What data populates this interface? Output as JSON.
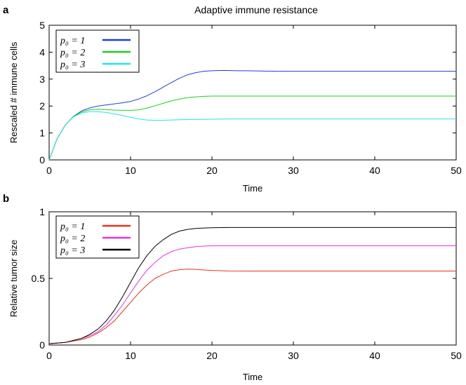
{
  "chart_data": [
    {
      "type": "line",
      "panel_label": "a",
      "title": "Adaptive immune resistance",
      "xlabel": "Time",
      "ylabel": "Rescaled # immune cells",
      "xlim": [
        0,
        50
      ],
      "ylim": [
        0,
        5
      ],
      "xticks": [
        "0",
        "10",
        "20",
        "30",
        "40",
        "50"
      ],
      "yticks": [
        "0",
        "1",
        "2",
        "3",
        "4",
        "5"
      ],
      "grid": false,
      "legend_position": "top-left",
      "series": [
        {
          "name": "p0 = 1",
          "legend_label": "p₀ = 1",
          "color": "#1f3de0",
          "x": [
            0,
            1,
            2,
            3,
            4,
            5,
            6,
            7,
            8,
            9,
            10,
            11,
            12,
            13,
            14,
            15,
            16,
            17,
            18,
            19,
            20,
            21,
            22,
            23,
            24,
            26,
            28,
            30,
            35,
            40,
            45,
            50
          ],
          "y": [
            0,
            0.8,
            1.3,
            1.62,
            1.82,
            1.93,
            2.0,
            2.04,
            2.08,
            2.12,
            2.17,
            2.26,
            2.38,
            2.53,
            2.7,
            2.87,
            3.03,
            3.16,
            3.24,
            3.29,
            3.31,
            3.32,
            3.32,
            3.31,
            3.31,
            3.3,
            3.29,
            3.29,
            3.29,
            3.29,
            3.29,
            3.29
          ]
        },
        {
          "name": "p0 = 2",
          "legend_label": "p₀ = 2",
          "color": "#22cc22",
          "x": [
            0,
            1,
            2,
            3,
            4,
            5,
            6,
            7,
            8,
            9,
            10,
            11,
            12,
            13,
            14,
            15,
            16,
            17,
            18,
            19,
            20,
            21,
            22,
            24,
            26,
            28,
            30,
            35,
            40,
            45,
            50
          ],
          "y": [
            0,
            0.8,
            1.3,
            1.62,
            1.78,
            1.86,
            1.88,
            1.87,
            1.85,
            1.84,
            1.84,
            1.86,
            1.92,
            2.01,
            2.1,
            2.19,
            2.26,
            2.31,
            2.34,
            2.36,
            2.37,
            2.37,
            2.37,
            2.37,
            2.37,
            2.37,
            2.37,
            2.37,
            2.37,
            2.37,
            2.37
          ]
        },
        {
          "name": "p0 = 3",
          "legend_label": "p₀ = 3",
          "color": "#22e5e5",
          "x": [
            0,
            1,
            2,
            3,
            4,
            5,
            6,
            7,
            8,
            9,
            10,
            11,
            12,
            13,
            14,
            15,
            16,
            18,
            20,
            22,
            25,
            30,
            35,
            40,
            45,
            50
          ],
          "y": [
            0,
            0.8,
            1.3,
            1.6,
            1.74,
            1.79,
            1.79,
            1.76,
            1.71,
            1.65,
            1.58,
            1.52,
            1.48,
            1.47,
            1.47,
            1.48,
            1.49,
            1.5,
            1.51,
            1.52,
            1.52,
            1.52,
            1.52,
            1.52,
            1.52,
            1.52
          ]
        }
      ]
    },
    {
      "type": "line",
      "panel_label": "b",
      "title": "",
      "xlabel": "Time",
      "ylabel": "Relative tumor size",
      "xlim": [
        0,
        50
      ],
      "ylim": [
        0,
        1
      ],
      "xticks": [
        "0",
        "10",
        "20",
        "30",
        "40",
        "50"
      ],
      "yticks": [
        "0",
        "0.5",
        "1"
      ],
      "grid": false,
      "legend_position": "top-left",
      "series": [
        {
          "name": "p0 = 1",
          "legend_label": "p₀ = 1",
          "color": "#e8331c",
          "x": [
            0,
            2,
            4,
            5,
            6,
            7,
            8,
            9,
            10,
            11,
            12,
            13,
            14,
            15,
            16,
            17,
            18,
            19,
            20,
            22,
            25,
            30,
            35,
            40,
            45,
            50
          ],
          "y": [
            0.01,
            0.02,
            0.04,
            0.06,
            0.09,
            0.13,
            0.18,
            0.25,
            0.32,
            0.39,
            0.45,
            0.5,
            0.53,
            0.555,
            0.565,
            0.57,
            0.568,
            0.563,
            0.56,
            0.556,
            0.555,
            0.555,
            0.555,
            0.555,
            0.555,
            0.555
          ]
        },
        {
          "name": "p0 = 2",
          "legend_label": "p₀ = 2",
          "color": "#e533e5",
          "x": [
            0,
            2,
            4,
            5,
            6,
            7,
            8,
            9,
            10,
            11,
            12,
            13,
            14,
            15,
            16,
            17,
            18,
            19,
            20,
            22,
            25,
            30,
            35,
            40,
            45,
            50
          ],
          "y": [
            0.01,
            0.02,
            0.05,
            0.07,
            0.1,
            0.15,
            0.22,
            0.3,
            0.39,
            0.48,
            0.56,
            0.62,
            0.67,
            0.7,
            0.72,
            0.73,
            0.738,
            0.742,
            0.745,
            0.745,
            0.745,
            0.745,
            0.745,
            0.745,
            0.745,
            0.745
          ]
        },
        {
          "name": "p0 = 3",
          "legend_label": "p₀ = 3",
          "color": "#000000",
          "x": [
            0,
            2,
            4,
            5,
            6,
            7,
            8,
            9,
            10,
            11,
            12,
            13,
            14,
            15,
            16,
            17,
            18,
            19,
            20,
            22,
            25,
            30,
            35,
            40,
            45,
            50
          ],
          "y": [
            0.01,
            0.02,
            0.05,
            0.08,
            0.12,
            0.18,
            0.26,
            0.36,
            0.47,
            0.58,
            0.67,
            0.74,
            0.79,
            0.83,
            0.855,
            0.868,
            0.875,
            0.878,
            0.88,
            0.882,
            0.882,
            0.882,
            0.882,
            0.882,
            0.882,
            0.882
          ]
        }
      ]
    }
  ]
}
